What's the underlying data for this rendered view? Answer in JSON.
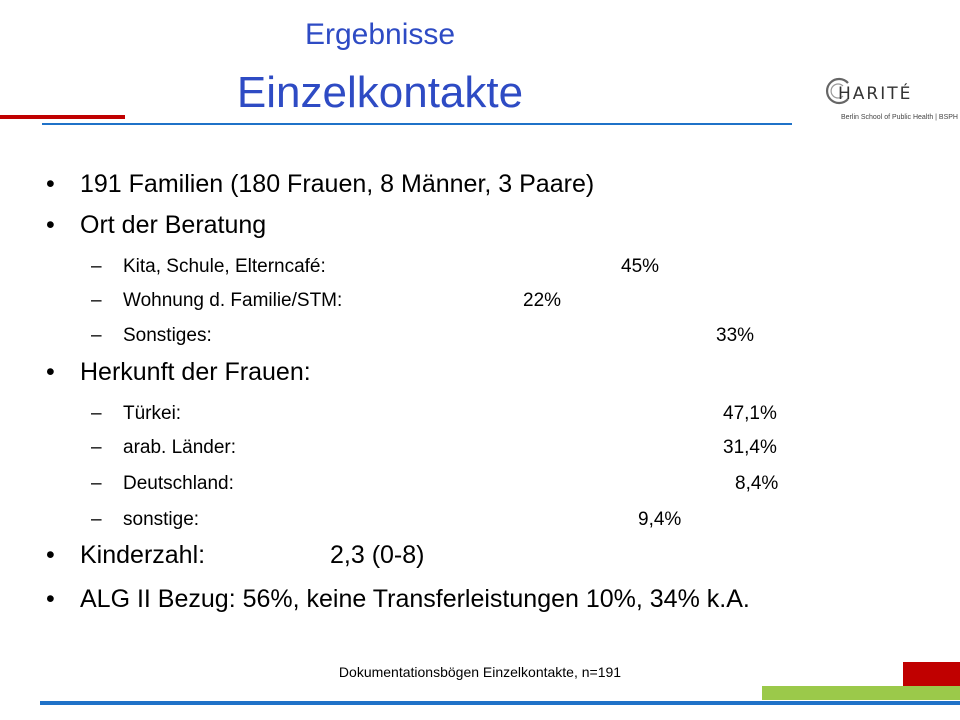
{
  "header": {
    "subtitle": "Ergebnisse",
    "title": "Einzelkontakte"
  },
  "logo": {
    "name": "HARITÉ",
    "subtitle": "Berlin School of Public Health | BSPH"
  },
  "bullets": {
    "b1": "191 Familien (180 Frauen, 8 Männer, 3 Paare)",
    "b2": "Ort der Beratung",
    "b2_items": [
      {
        "label": "Kita, Schule, Elterncafé:",
        "value": "45%"
      },
      {
        "label": "Wohnung d. Familie/STM:",
        "value": "22%"
      },
      {
        "label": "Sonstiges:",
        "value": "33%"
      }
    ],
    "b3": "Herkunft der Frauen:",
    "b3_items": [
      {
        "label": "Türkei:",
        "value": "47,1%"
      },
      {
        "label": "arab. Länder:",
        "value": "31,4%"
      },
      {
        "label": "Deutschland:",
        "value": "8,4%"
      },
      {
        "label": "sonstige:",
        "value": "9,4%"
      }
    ],
    "b4_label": "Kinderzahl:",
    "b4_value": "2,3 (0-8)",
    "b5": "ALG II Bezug: 56%,  keine Transferleistungen 10%,  34% k.A."
  },
  "footer": {
    "source": "Dokumentationsbögen Einzelkontakte, n=191"
  },
  "colors": {
    "title_blue": "#2e4bc4",
    "accent_red": "#c00000",
    "accent_blue": "#1f72c8",
    "accent_green": "#9bc94a"
  }
}
